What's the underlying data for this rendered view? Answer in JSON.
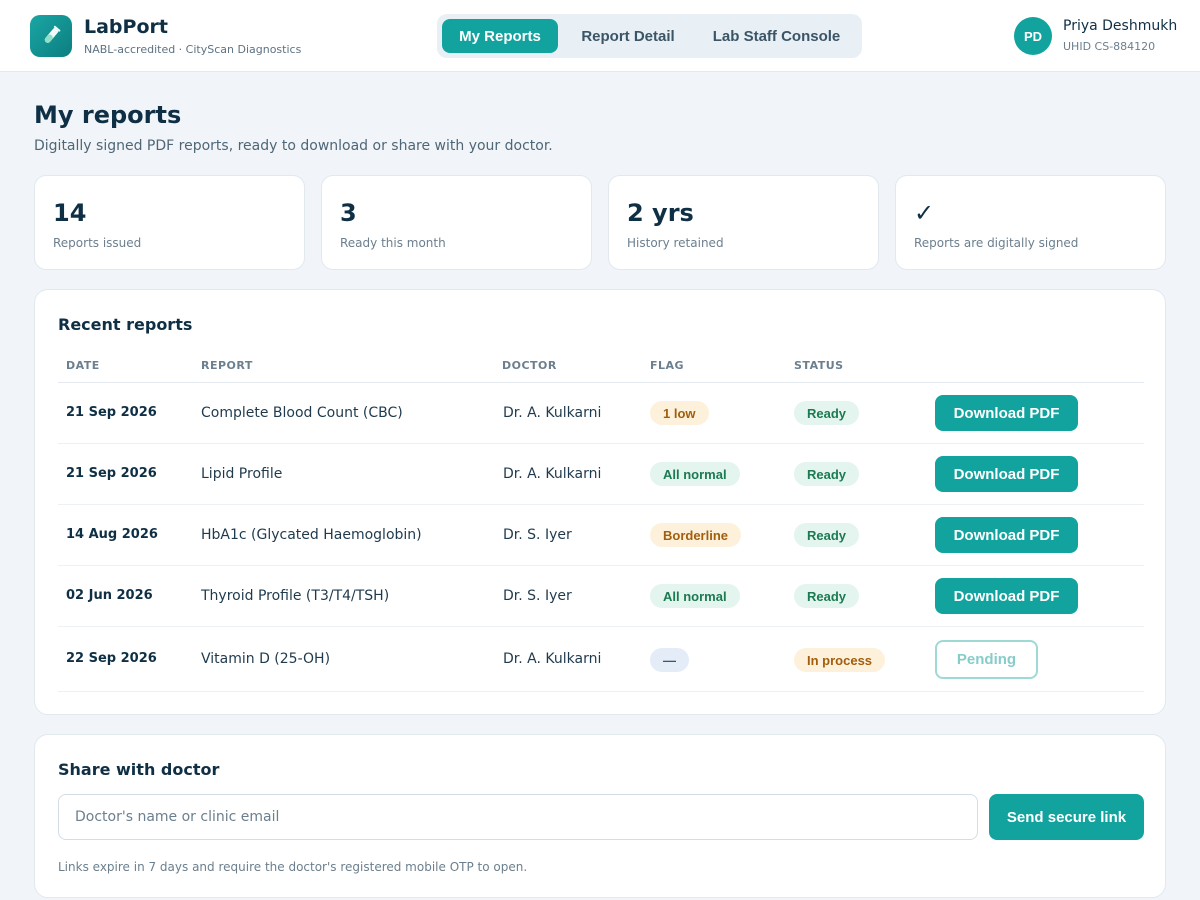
{
  "header": {
    "brand_name": "LabPort",
    "brand_sub": "NABL-accredited · CityScan Diagnostics",
    "logo_icon": "test-tube-icon",
    "tabs": [
      {
        "label": "My Reports",
        "active": true
      },
      {
        "label": "Report Detail",
        "active": false
      },
      {
        "label": "Lab Staff Console",
        "active": false
      }
    ],
    "user": {
      "initials": "PD",
      "name": "Priya Deshmukh",
      "id": "UHID CS-884120"
    }
  },
  "page": {
    "title": "My reports",
    "subtitle": "Digitally signed PDF reports, ready to download or share with your doctor."
  },
  "stats": [
    {
      "value": "14",
      "label": "Reports issued"
    },
    {
      "value": "3",
      "label": "Ready this month"
    },
    {
      "value": "2 yrs",
      "label": "History retained"
    },
    {
      "value": "✓",
      "label": "Reports are digitally signed"
    }
  ],
  "reports": {
    "title": "Recent reports",
    "columns": [
      "DATE",
      "REPORT",
      "DOCTOR",
      "FLAG",
      "STATUS"
    ],
    "rows": [
      {
        "date": "21 Sep 2026",
        "report": "Complete Blood Count (CBC)",
        "doctor": "Dr. A. Kulkarni",
        "flag": "1 low",
        "flag_type": "warn",
        "status": "Ready",
        "status_type": "ok",
        "action": "Download PDF",
        "action_type": "primary"
      },
      {
        "date": "21 Sep 2026",
        "report": "Lipid Profile",
        "doctor": "Dr. A. Kulkarni",
        "flag": "All normal",
        "flag_type": "ok",
        "status": "Ready",
        "status_type": "ok",
        "action": "Download PDF",
        "action_type": "primary"
      },
      {
        "date": "14 Aug 2026",
        "report": "HbA1c (Glycated Haemoglobin)",
        "doctor": "Dr. S. Iyer",
        "flag": "Borderline",
        "flag_type": "warn",
        "status": "Ready",
        "status_type": "ok",
        "action": "Download PDF",
        "action_type": "primary"
      },
      {
        "date": "02 Jun 2026",
        "report": "Thyroid Profile (T3/T4/TSH)",
        "doctor": "Dr. S. Iyer",
        "flag": "All normal",
        "flag_type": "ok",
        "status": "Ready",
        "status_type": "ok",
        "action": "Download PDF",
        "action_type": "primary"
      },
      {
        "date": "22 Sep 2026",
        "report": "Vitamin D (25-OH)",
        "doctor": "Dr. A. Kulkarni",
        "flag": "—",
        "flag_type": "none",
        "status": "In process",
        "status_type": "warn",
        "action": "Pending",
        "action_type": "pending"
      }
    ]
  },
  "share": {
    "title": "Share with doctor",
    "input_placeholder": "Doctor's name or clinic email",
    "input_value": "",
    "button_label": "Send secure link",
    "note": "Links expire in 7 days and require the doctor's registered mobile OTP to open."
  },
  "colors": {
    "accent": "#13a39f",
    "warn_bg": "#fdf1dc",
    "ok_bg": "#e3f5ee",
    "neutral_bg": "#e4ecf8"
  }
}
